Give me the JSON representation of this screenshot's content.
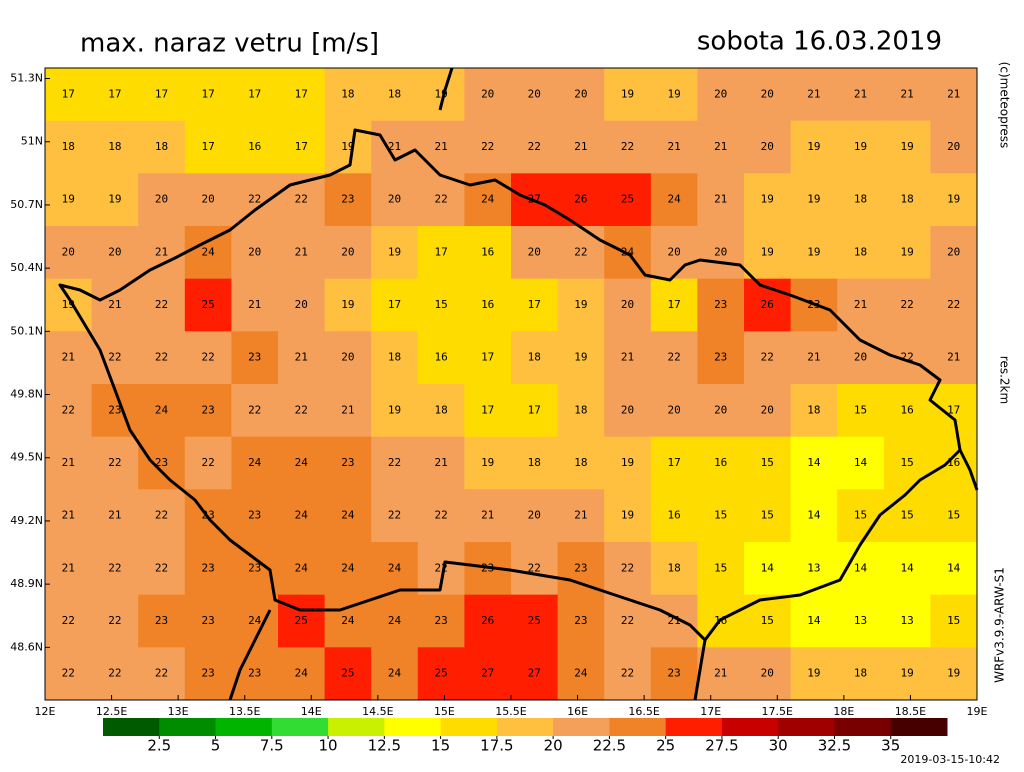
{
  "chart_data": {
    "type": "heatmap",
    "title": "max. naraz vetru [m/s]",
    "date": "sobota 16.03.2019",
    "xlim": [
      12,
      19
    ],
    "ylim": [
      48.35,
      51.35
    ],
    "xticks": [
      {
        "value": 12,
        "label": "12E"
      },
      {
        "value": 12.5,
        "label": "12.5E"
      },
      {
        "value": 13,
        "label": "13E"
      },
      {
        "value": 13.5,
        "label": "13.5E"
      },
      {
        "value": 14,
        "label": "14E"
      },
      {
        "value": 14.5,
        "label": "14.5E"
      },
      {
        "value": 15,
        "label": "15E"
      },
      {
        "value": 15.5,
        "label": "15.5E"
      },
      {
        "value": 16,
        "label": "16E"
      },
      {
        "value": 16.5,
        "label": "16.5E"
      },
      {
        "value": 17,
        "label": "17E"
      },
      {
        "value": 17.5,
        "label": "17.5E"
      },
      {
        "value": 18,
        "label": "18E"
      },
      {
        "value": 18.5,
        "label": "18.5E"
      },
      {
        "value": 19,
        "label": "19E"
      }
    ],
    "yticks": [
      {
        "value": 48.6,
        "label": "48.6N"
      },
      {
        "value": 48.9,
        "label": "48.9N"
      },
      {
        "value": 49.2,
        "label": "49.2N"
      },
      {
        "value": 49.5,
        "label": "49.5N"
      },
      {
        "value": 49.8,
        "label": "49.8N"
      },
      {
        "value": 50.1,
        "label": "50.1N"
      },
      {
        "value": 50.4,
        "label": "50.4N"
      },
      {
        "value": 50.7,
        "label": "50.7N"
      },
      {
        "value": 51,
        "label": "51N"
      },
      {
        "value": 51.3,
        "label": "51.3N"
      }
    ],
    "values": [
      [
        17,
        17,
        17,
        17,
        17,
        17,
        18,
        18,
        19,
        20,
        20,
        20,
        19,
        19,
        20,
        20,
        21,
        21,
        21,
        21
      ],
      [
        18,
        18,
        18,
        17,
        16,
        17,
        19,
        21,
        21,
        22,
        22,
        21,
        22,
        21,
        21,
        20,
        19,
        19,
        19,
        20
      ],
      [
        19,
        19,
        20,
        20,
        22,
        22,
        23,
        20,
        22,
        24,
        27,
        26,
        25,
        24,
        21,
        19,
        19,
        18,
        18,
        19
      ],
      [
        20,
        20,
        21,
        24,
        20,
        21,
        20,
        19,
        17,
        16,
        20,
        22,
        24,
        20,
        20,
        19,
        19,
        18,
        19,
        20
      ],
      [
        19,
        21,
        22,
        25,
        21,
        20,
        19,
        17,
        15,
        16,
        17,
        19,
        20,
        17,
        23,
        26,
        23,
        21,
        22,
        22
      ],
      [
        21,
        22,
        22,
        22,
        23,
        21,
        20,
        18,
        16,
        17,
        18,
        19,
        21,
        22,
        23,
        22,
        21,
        20,
        22,
        21
      ],
      [
        22,
        23,
        24,
        23,
        22,
        22,
        21,
        19,
        18,
        17,
        17,
        18,
        20,
        20,
        20,
        20,
        18,
        15,
        16,
        17
      ],
      [
        21,
        22,
        23,
        22,
        24,
        24,
        23,
        22,
        21,
        19,
        18,
        18,
        19,
        17,
        16,
        15,
        14,
        14,
        15,
        16
      ],
      [
        21,
        21,
        22,
        23,
        23,
        24,
        24,
        22,
        22,
        21,
        20,
        21,
        19,
        16,
        15,
        15,
        14,
        15,
        15,
        15
      ],
      [
        21,
        22,
        22,
        23,
        23,
        24,
        24,
        24,
        22,
        23,
        22,
        23,
        22,
        18,
        15,
        14,
        13,
        14,
        14,
        14
      ],
      [
        22,
        22,
        23,
        23,
        24,
        25,
        24,
        24,
        23,
        26,
        25,
        23,
        22,
        21,
        16,
        15,
        14,
        13,
        13,
        15
      ],
      [
        22,
        22,
        22,
        23,
        23,
        24,
        25,
        24,
        25,
        27,
        27,
        24,
        22,
        23,
        21,
        20,
        19,
        18,
        19,
        19
      ]
    ],
    "colorbar": {
      "ticks": [
        2.5,
        5,
        7.5,
        10,
        12.5,
        15,
        17.5,
        20,
        22.5,
        25,
        27.5,
        30,
        32.5,
        35
      ],
      "colors": [
        "#005a00",
        "#008c00",
        "#00b400",
        "#32dc32",
        "#c8f000",
        "#ffff00",
        "#ffdc00",
        "#ffc040",
        "#f5a05a",
        "#f08228",
        "#ff1e00",
        "#c80000",
        "#a00000",
        "#780000",
        "#460000"
      ]
    }
  },
  "side": {
    "copyright": "(c)meteopress",
    "resolution": "res.2km",
    "model": "WRFv3.9.9-ARW-S1"
  },
  "timestamp": "2019-03-15-10:42"
}
